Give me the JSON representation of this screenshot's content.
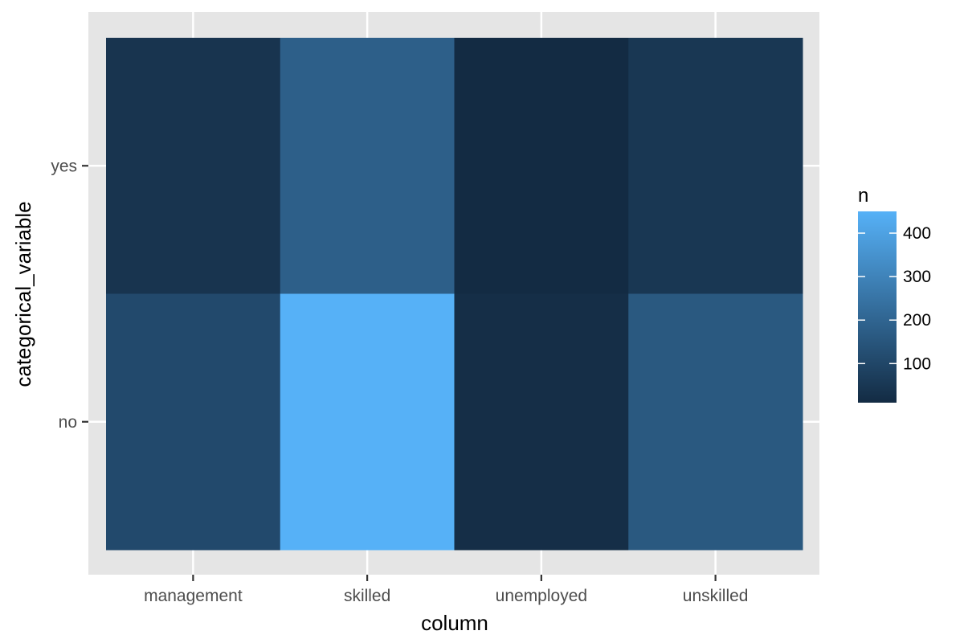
{
  "chart_data": {
    "type": "heatmap",
    "title": "",
    "xlabel": "column",
    "ylabel": "categorical_variable",
    "x_categories": [
      "management",
      "skilled",
      "unemployed",
      "unskilled"
    ],
    "y_categories": [
      "no",
      "yes"
    ],
    "cells": [
      {
        "x": "management",
        "y": "yes",
        "n": 40
      },
      {
        "x": "skilled",
        "y": "yes",
        "n": 180
      },
      {
        "x": "unemployed",
        "y": "yes",
        "n": 10
      },
      {
        "x": "unskilled",
        "y": "yes",
        "n": 50
      },
      {
        "x": "management",
        "y": "no",
        "n": 110
      },
      {
        "x": "skilled",
        "y": "no",
        "n": 450
      },
      {
        "x": "unemployed",
        "y": "no",
        "n": 20
      },
      {
        "x": "unskilled",
        "y": "no",
        "n": 160
      }
    ],
    "legend": {
      "title": "n",
      "ticks": [
        100,
        200,
        300,
        400
      ],
      "range": [
        10,
        450
      ],
      "low_color": "#132B43",
      "high_color": "#56B1F7",
      "placement": "right"
    },
    "grid": true,
    "panel_background": "#EBEBEB"
  }
}
